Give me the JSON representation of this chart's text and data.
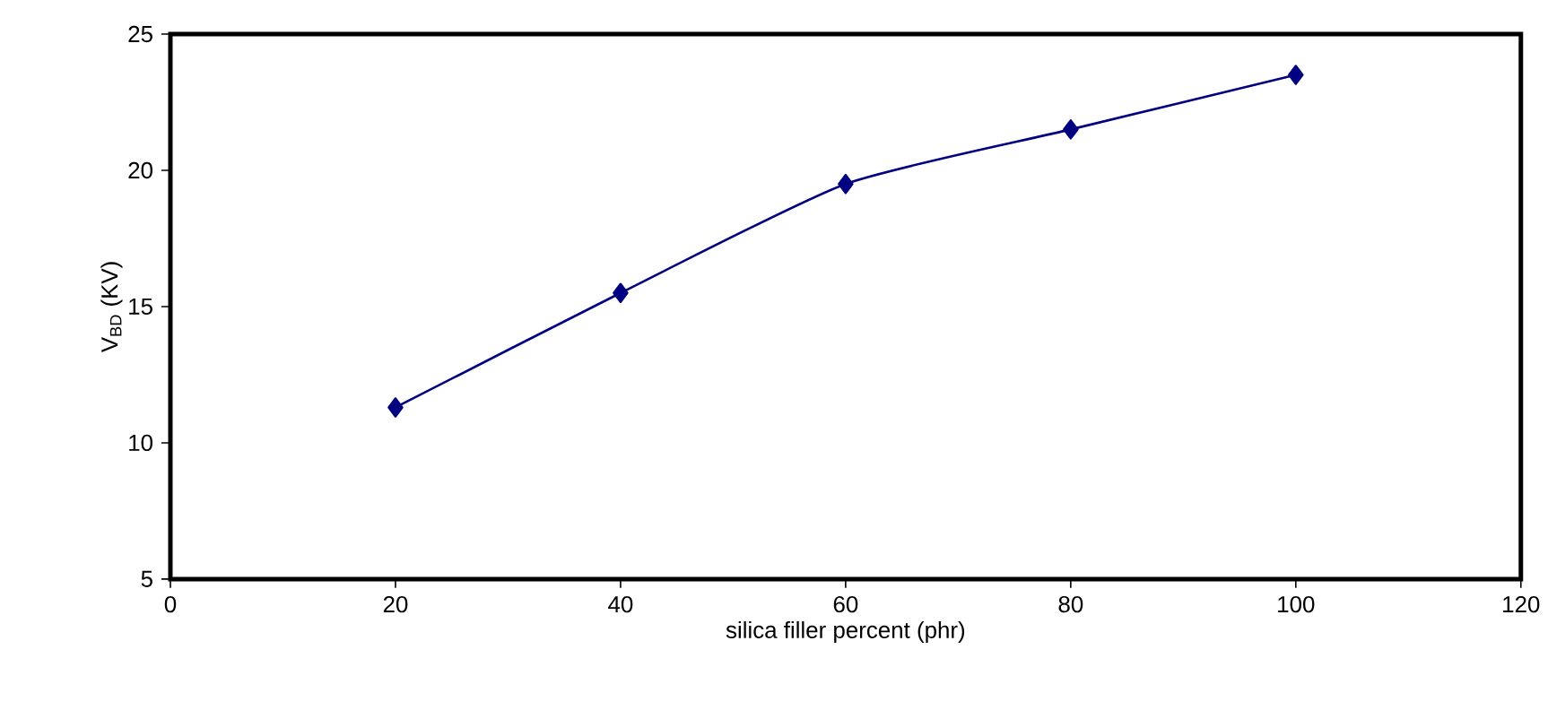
{
  "chart_data": {
    "type": "line",
    "xlabel": "silica filler percent (phr)",
    "ylabel": "V$_{BD}$ (KV)",
    "x": [
      20,
      40,
      60,
      80,
      100
    ],
    "series": [
      {
        "color": "#000080",
        "values": [
          11.3,
          15.5,
          19.5,
          21.5,
          23.5
        ]
      }
    ],
    "xlim": [
      0,
      120
    ],
    "xticks": [
      0,
      20,
      40,
      60,
      80,
      100,
      120
    ],
    "ylim": [
      5,
      25
    ],
    "yticks": [
      5,
      10,
      15,
      20,
      25
    ],
    "marker": "diamond",
    "line_style": "solid",
    "grid": false
  }
}
